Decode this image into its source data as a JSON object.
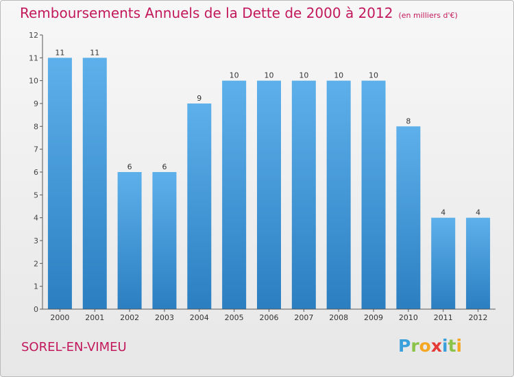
{
  "title": "Remboursements Annuels de la Dette de 2000 à 2012",
  "unit_label": "(en milliers d'€)",
  "city": "SOREL-EN-VIMEU",
  "logo": {
    "letters": [
      "P",
      "r",
      "o",
      "x",
      "i",
      "t",
      "i"
    ],
    "colors": [
      "#3aa0dc",
      "#8bc34a",
      "#f5a623",
      "#e53935",
      "#3aa0dc",
      "#8bc34a",
      "#f5a623"
    ]
  },
  "colors": {
    "bar": "#2b7fc1",
    "bar_light": "#5db0ea",
    "title": "#c2185b"
  },
  "chart_data": {
    "type": "bar",
    "categories": [
      "2000",
      "2001",
      "2002",
      "2003",
      "2004",
      "2005",
      "2006",
      "2007",
      "2008",
      "2009",
      "2010",
      "2011",
      "2012"
    ],
    "values": [
      11,
      11,
      6,
      6,
      9,
      10,
      10,
      10,
      10,
      10,
      8,
      4,
      4
    ],
    "yticks": [
      0,
      1,
      2,
      3,
      4,
      5,
      6,
      7,
      8,
      9,
      10,
      11,
      12
    ],
    "ylim": [
      0,
      12
    ],
    "grid": false,
    "data_labels": true
  }
}
